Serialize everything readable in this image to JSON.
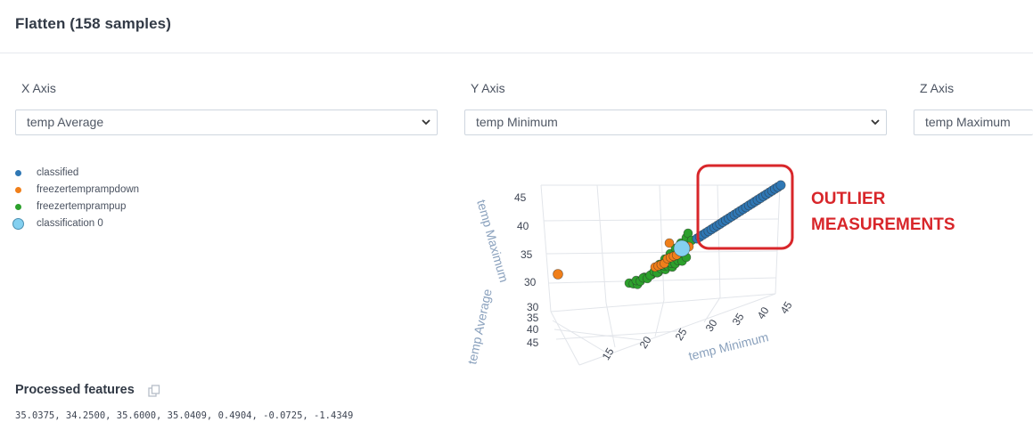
{
  "header": {
    "title": "Flatten (158 samples)"
  },
  "axes_selectors": [
    {
      "label": "X Axis",
      "value": "temp Average"
    },
    {
      "label": "Y Axis",
      "value": "temp Minimum"
    },
    {
      "label": "Z Axis",
      "value": "temp Maximum"
    }
  ],
  "legend": [
    {
      "label": "classified",
      "color": "#2f77b4"
    },
    {
      "label": "freezertemprampdown",
      "color": "#f07f1a"
    },
    {
      "label": "freezertemprampup",
      "color": "#2ca02c"
    },
    {
      "label": "classification 0",
      "color": "#84d0f0"
    }
  ],
  "plot": {
    "z_axis_title": "temp Maximum",
    "x_axis_title": "temp Average",
    "y_axis_title": "temp Minimum",
    "z_ticks": [
      "45",
      "40",
      "35",
      "30"
    ],
    "x_ticks": [
      "30",
      "35",
      "40",
      "45"
    ],
    "y_ticks": [
      "15",
      "20",
      "25",
      "30",
      "35",
      "40",
      "45"
    ]
  },
  "annotation": {
    "line1": "OUTLIER",
    "line2": "MEASUREMENTS",
    "color": "#d8262a"
  },
  "processed_features": {
    "title": "Processed features",
    "values": "35.0375, 34.2500, 35.6000, 35.0409, 0.4904, -0.0725, -1.4349"
  }
}
